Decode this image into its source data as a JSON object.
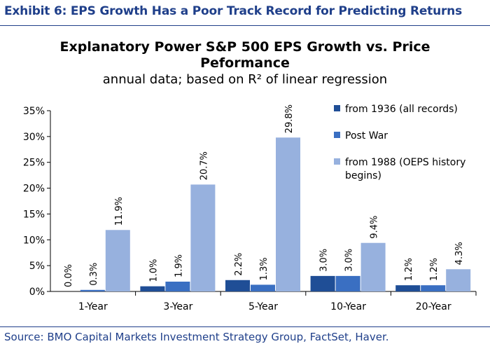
{
  "header": {
    "exhibit_title": "Exhibit 6: EPS Growth Has a Poor Track Record for Predicting Returns",
    "source": "Source: BMO Capital Markets Investment Strategy Group, FactSet, Haver."
  },
  "chart_data": {
    "type": "bar",
    "title_line1": "Explanatory Power S&P 500 EPS Growth vs. Price",
    "title_line2": "Peformance",
    "subtitle": "annual data; based on R² of linear regression",
    "categories": [
      "1-Year",
      "3-Year",
      "5-Year",
      "10-Year",
      "20-Year"
    ],
    "series": [
      {
        "name": "from 1936 (all records)",
        "color": "#1f4e96",
        "values": [
          0.0,
          1.0,
          2.2,
          3.0,
          1.2
        ],
        "labels": [
          "0.0%",
          "1.0%",
          "2.2%",
          "3.0%",
          "1.2%"
        ]
      },
      {
        "name": "Post War",
        "color": "#3a6fc2",
        "values": [
          0.3,
          1.9,
          1.3,
          3.0,
          1.2
        ],
        "labels": [
          "0.3%",
          "1.9%",
          "1.3%",
          "3.0%",
          "1.2%"
        ]
      },
      {
        "name": "from 1988 (OEPS history begins)",
        "name_lines": [
          "from 1988 (OEPS history",
          "begins)"
        ],
        "color": "#97b1de",
        "values": [
          11.9,
          20.7,
          29.8,
          9.4,
          4.3
        ],
        "labels": [
          "11.9%",
          "20.7%",
          "29.8%",
          "9.4%",
          "4.3%"
        ]
      }
    ],
    "ylim": [
      0,
      35
    ],
    "yticks": [
      "0%",
      "5%",
      "10%",
      "15%",
      "20%",
      "25%",
      "30%",
      "35%"
    ],
    "ytick_values": [
      0,
      5,
      10,
      15,
      20,
      25,
      30,
      35
    ],
    "legend_position": "right",
    "grid": false
  }
}
